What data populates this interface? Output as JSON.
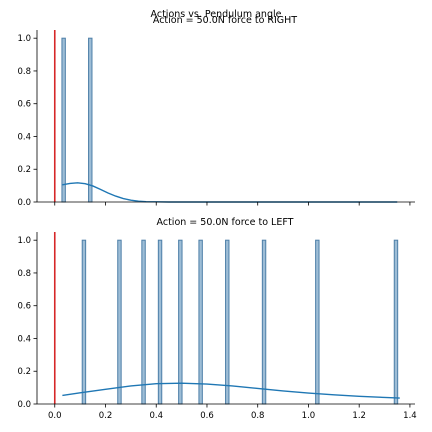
{
  "figure": {
    "suptitle": "Actions vs. Pendulum angle"
  },
  "chart_data": [
    {
      "type": "bar",
      "title": "Action = 50.0N force to RIGHT",
      "xlabel": "",
      "ylabel": "",
      "xlim": [
        -0.07,
        1.42
      ],
      "ylim": [
        0,
        1.05
      ],
      "x_ticks": [
        0.0,
        0.2,
        0.4,
        0.6,
        0.8,
        1.0,
        1.2,
        1.4
      ],
      "x_tick_labels_visible": false,
      "y_ticks": [
        0.0,
        0.2,
        0.4,
        0.6,
        0.8,
        1.0
      ],
      "y_tick_labels": [
        "0.0",
        "0.2",
        "0.4",
        "0.6",
        "0.8",
        "1.0"
      ],
      "bin_width": 0.0135,
      "bars": [
        {
          "x": 0.035,
          "value": 1.0
        },
        {
          "x": 0.14,
          "value": 1.0
        }
      ],
      "kde_curve": {
        "x": [
          0.03,
          0.06,
          0.09,
          0.12,
          0.15,
          0.18,
          0.21,
          0.24,
          0.27,
          0.3,
          0.33,
          0.36,
          0.4,
          0.45,
          0.5,
          0.7,
          1.0,
          1.35
        ],
        "y": [
          0.105,
          0.113,
          0.117,
          0.112,
          0.098,
          0.077,
          0.055,
          0.036,
          0.021,
          0.011,
          0.005,
          0.002,
          0.001,
          0.0,
          0.0,
          0.0,
          0.0,
          0.0
        ]
      },
      "reference_line_x": 0.0,
      "colors": {
        "bar": "#9dbdd6",
        "bar_edge": "#4d7fa8",
        "kde": "#1f77b4",
        "reference_line": "#d62728"
      }
    },
    {
      "type": "bar",
      "title": "Action = 50.0N force to LEFT",
      "xlabel": "",
      "ylabel": "",
      "xlim": [
        -0.07,
        1.42
      ],
      "ylim": [
        0,
        1.05
      ],
      "x_ticks": [
        0.0,
        0.2,
        0.4,
        0.6,
        0.8,
        1.0,
        1.2,
        1.4
      ],
      "x_tick_labels": [
        "0.0",
        "0.2",
        "0.4",
        "0.6",
        "0.8",
        "1.0",
        "1.2",
        "1.4"
      ],
      "y_ticks": [
        0.0,
        0.2,
        0.4,
        0.6,
        0.8,
        1.0
      ],
      "y_tick_labels": [
        "0.0",
        "0.2",
        "0.4",
        "0.6",
        "0.8",
        "1.0"
      ],
      "bin_width": 0.0135,
      "bars": [
        {
          "x": 0.115,
          "value": 1.0
        },
        {
          "x": 0.255,
          "value": 1.0
        },
        {
          "x": 0.35,
          "value": 1.0
        },
        {
          "x": 0.415,
          "value": 1.0
        },
        {
          "x": 0.495,
          "value": 1.0
        },
        {
          "x": 0.575,
          "value": 1.0
        },
        {
          "x": 0.68,
          "value": 1.0
        },
        {
          "x": 0.825,
          "value": 1.0
        },
        {
          "x": 1.035,
          "value": 1.0
        },
        {
          "x": 1.345,
          "value": 1.0
        }
      ],
      "kde_curve": {
        "x": [
          0.03,
          0.1,
          0.2,
          0.3,
          0.4,
          0.5,
          0.6,
          0.7,
          0.8,
          0.9,
          1.0,
          1.1,
          1.2,
          1.3,
          1.36
        ],
        "y": [
          0.052,
          0.068,
          0.09,
          0.11,
          0.124,
          0.127,
          0.122,
          0.11,
          0.095,
          0.08,
          0.067,
          0.056,
          0.047,
          0.04,
          0.036
        ]
      },
      "reference_line_x": 0.0,
      "colors": {
        "bar": "#9dbdd6",
        "bar_edge": "#4d7fa8",
        "kde": "#1f77b4",
        "reference_line": "#d62728"
      }
    }
  ]
}
